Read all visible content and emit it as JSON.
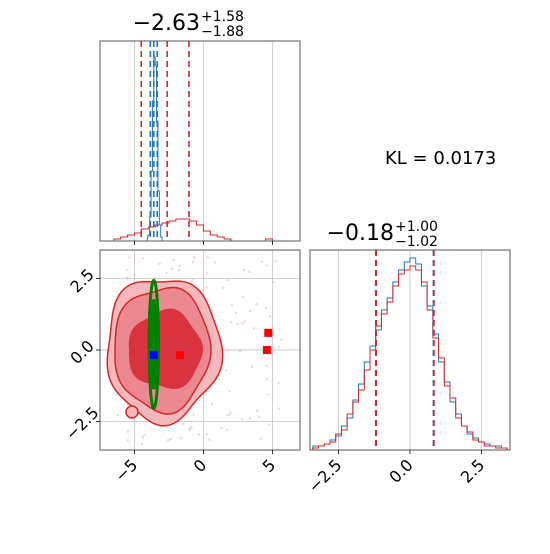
{
  "colors": {
    "red": "#d62728",
    "blue": "#1f77b4",
    "green": "#008000",
    "marker_red": "#ff0000",
    "marker_blue": "#0000ff",
    "grid": "#c8c8c8"
  },
  "chart_data": [
    {
      "type": "histogram",
      "panel": "marginal-x",
      "title": {
        "main": "−2.63",
        "sup": "+1.58",
        "sub": "−1.88"
      },
      "xlim": [
        -7.5,
        7
      ],
      "ylim": [
        0,
        100
      ],
      "grid": true,
      "quantiles": {
        "red": [
          -4.51,
          -2.63,
          -1.05
        ],
        "blue": [
          -3.85,
          -3.6,
          -3.35
        ]
      },
      "series": [
        {
          "color": "#d62728",
          "x": [
            -7.5,
            -7,
            -6.5,
            -6,
            -5.5,
            -5,
            -4.5,
            -4,
            -3.5,
            -3,
            -2.5,
            -2,
            -1.5,
            -1,
            -0.5,
            0,
            0.5,
            1,
            1.5,
            2,
            2.5,
            3,
            3.5,
            4,
            4.5,
            5,
            5.5,
            6,
            6.5
          ],
          "values": [
            0,
            0,
            1,
            2,
            3,
            4,
            6,
            7,
            8,
            9,
            10,
            11,
            11,
            10,
            8,
            5,
            3,
            2,
            1,
            0,
            0,
            0,
            0,
            0,
            1,
            0,
            0,
            0,
            0
          ]
        },
        {
          "color": "#1f77b4",
          "x": [
            -4.2,
            -4.0,
            -3.9,
            -3.8,
            -3.7,
            -3.6,
            -3.5,
            -3.4,
            -3.3,
            -3.2,
            -3.1,
            -3.0
          ],
          "values": [
            0,
            3,
            12,
            35,
            70,
            92,
            88,
            60,
            25,
            8,
            2,
            0
          ]
        }
      ]
    },
    {
      "type": "contour",
      "panel": "joint",
      "xlim": [
        -7.5,
        7
      ],
      "ylim": [
        -3.5,
        3.5
      ],
      "grid": true,
      "xticks": [
        "−5",
        "0",
        "5"
      ],
      "yticks": [
        "−2.5",
        "0.0",
        "2.5"
      ],
      "red_levels": [
        "outer",
        "middle",
        "inner"
      ],
      "green_ellipse": {
        "cx": -3.6,
        "cy": 0.2,
        "rx": 0.2,
        "ry": 2.1
      },
      "markers": [
        {
          "color": "#0000ff",
          "x": -3.6,
          "y": -0.18
        },
        {
          "color": "#ff0000",
          "x": -1.7,
          "y": -0.18
        },
        {
          "color": "#ff0000",
          "x": 4.7,
          "y": 0.6
        },
        {
          "color": "#ff0000",
          "x": 4.6,
          "y": 0.0
        }
      ]
    },
    {
      "type": "histogram",
      "panel": "marginal-y",
      "title": {
        "main": "−0.18",
        "sup": "+1.00",
        "sub": "−1.02"
      },
      "xlim": [
        -3.5,
        3.5
      ],
      "ylim": [
        0,
        100
      ],
      "grid": true,
      "xticks": [
        "−2.5",
        "0.0",
        "2.5"
      ],
      "quantiles": {
        "red": [
          -1.2,
          -0.18,
          0.82
        ],
        "blue": [
          -1.2,
          -0.18,
          0.82
        ]
      },
      "series": [
        {
          "color": "#1f77b4",
          "x": [
            -3.4,
            -3.2,
            -3.0,
            -2.8,
            -2.6,
            -2.4,
            -2.2,
            -2.0,
            -1.8,
            -1.6,
            -1.4,
            -1.2,
            -1.0,
            -0.8,
            -0.6,
            -0.4,
            -0.2,
            0.0,
            0.2,
            0.4,
            0.6,
            0.8,
            1.0,
            1.2,
            1.4,
            1.6,
            1.8,
            2.0,
            2.2,
            2.4,
            2.6,
            2.8,
            3.0,
            3.2
          ],
          "values": [
            2,
            2,
            3,
            5,
            7,
            12,
            16,
            25,
            33,
            44,
            52,
            60,
            70,
            76,
            84,
            90,
            94,
            96,
            93,
            82,
            72,
            58,
            44,
            34,
            24,
            18,
            12,
            8,
            6,
            4,
            3,
            2,
            2,
            1
          ]
        },
        {
          "color": "#d62728",
          "x": [
            -3.4,
            -3.2,
            -3.0,
            -2.8,
            -2.6,
            -2.4,
            -2.2,
            -2.0,
            -1.8,
            -1.6,
            -1.4,
            -1.2,
            -1.0,
            -0.8,
            -0.6,
            -0.4,
            -0.2,
            0.0,
            0.2,
            0.4,
            0.6,
            0.8,
            1.0,
            1.2,
            1.4,
            1.6,
            1.8,
            2.0,
            2.2,
            2.4,
            2.6,
            2.8,
            3.0,
            3.2
          ],
          "values": [
            1,
            2,
            3,
            4,
            8,
            10,
            18,
            24,
            30,
            40,
            50,
            62,
            68,
            74,
            82,
            88,
            90,
            92,
            90,
            84,
            70,
            56,
            46,
            32,
            26,
            16,
            12,
            9,
            5,
            4,
            2,
            2,
            1,
            1
          ]
        }
      ]
    }
  ],
  "kl_text": "KL = 0.0173"
}
